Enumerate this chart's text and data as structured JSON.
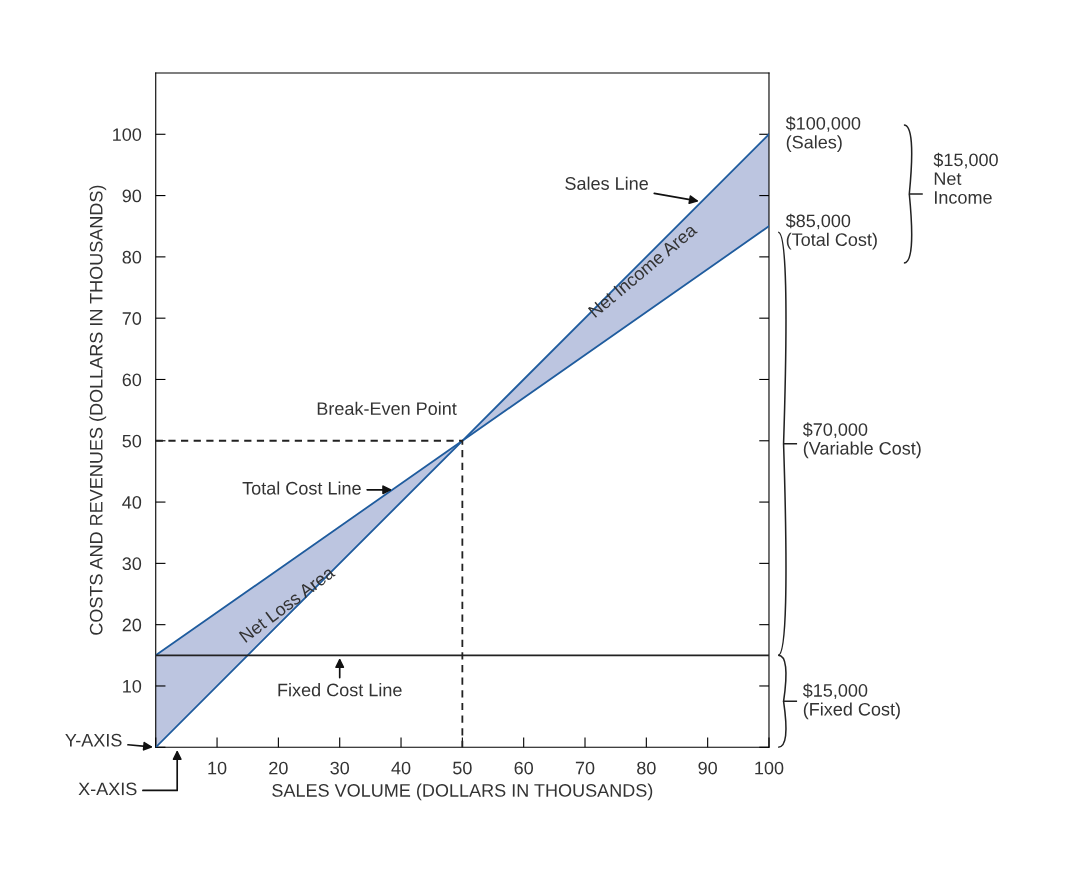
{
  "chart_data": {
    "type": "line",
    "xlabel": "SALES VOLUME (DOLLARS IN THOUSANDS)",
    "ylabel": "COSTS AND REVENUES (DOLLARS IN THOUSANDS)",
    "xlim": [
      0,
      100
    ],
    "ylim": [
      0,
      110
    ],
    "xticks": [
      {
        "value": 0,
        "label": null
      },
      10,
      20,
      30,
      40,
      50,
      60,
      70,
      80,
      90,
      100
    ],
    "yticks": [
      {
        "value": 0,
        "label": null
      },
      10,
      20,
      30,
      40,
      50,
      60,
      70,
      80,
      90,
      100
    ],
    "grid": false,
    "legend": false,
    "marker": "none",
    "series": [
      {
        "color": "#1f5c9e",
        "x": [
          0,
          50,
          100
        ],
        "values": [
          0,
          50,
          100
        ]
      },
      {
        "color": "#1f5c9e",
        "x": [
          0,
          50,
          100
        ],
        "values": [
          15,
          50,
          85
        ],
        "lower": [
          0,
          50,
          85
        ],
        "upper": [
          15,
          50,
          100
        ]
      },
      {
        "color": "#222222",
        "x": [
          0,
          100
        ],
        "values": [
          15,
          15
        ]
      },
      {
        "color": "#222222",
        "line_style": "dashed",
        "x": [
          0,
          50,
          50
        ],
        "values": [
          50,
          50,
          0
        ]
      }
    ],
    "annotations": [
      {
        "text": "Sales Line",
        "x": 89,
        "y": 89
      },
      {
        "text": "Total Cost Line",
        "x": 39,
        "y": 42
      },
      {
        "text": "Break-Even Point",
        "x": 50,
        "y": 50
      },
      {
        "text": "Fixed Cost Line",
        "x": 30,
        "y": 15
      },
      "Net Income Area",
      "Net Loss Area",
      {
        "text": "Y-AXIS",
        "x": 0,
        "y": 0
      },
      "X-AXIS",
      {
        "text": "$100,000\n(Sales)",
        "x": 100,
        "y": 100
      },
      {
        "text": "$85,000\n(Total Cost)",
        "x": 100,
        "y": 85
      },
      "$15,000\nNet\nIncome",
      "$70,000\n(Variable Cost)",
      "$15,000\n(Fixed Cost)"
    ]
  }
}
